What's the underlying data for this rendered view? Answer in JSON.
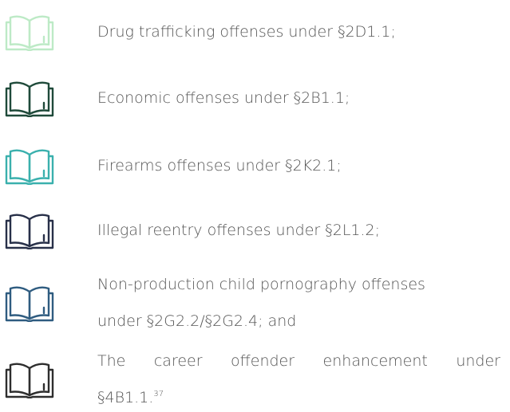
{
  "items": [
    {
      "lines": [
        "Drug trafficking offenses under §2D1.1;"
      ]
    },
    {
      "lines": [
        "Economic offenses under §2B1.1;"
      ]
    },
    {
      "lines": [
        "Firearms offenses under §2K2.1;"
      ]
    },
    {
      "lines": [
        "Illegal reentry offenses under §2L1.2;"
      ]
    },
    {
      "lines": [
        "Non-production child pornography offenses",
        "under §2G2.2/§2G2.4; and"
      ]
    },
    {
      "lines": [
        "The career offender enhancement under",
        "§4B1.1."
      ],
      "footnote": "37"
    }
  ]
}
